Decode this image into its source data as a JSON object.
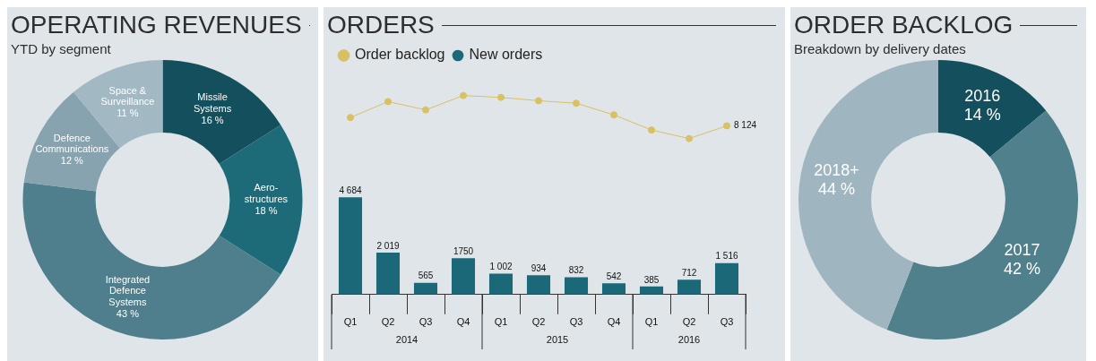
{
  "chart_data": [
    {
      "type": "donut",
      "title": "OPERATING REVENUES",
      "subtitle": "YTD by segment",
      "categories": [
        "Missile Systems",
        "Aero-structures",
        "Integrated Defence Systems",
        "Defence Communications",
        "Space & Surveillance"
      ],
      "values": [
        16,
        18,
        43,
        12,
        11
      ],
      "value_labels": [
        "16 %",
        "18 %",
        "43 %",
        "12 %",
        "11 %"
      ],
      "colors": [
        "#134f5c",
        "#1d6a78",
        "#4f7f8c",
        "#86a3af",
        "#a2b9c3"
      ]
    },
    {
      "type": "bar",
      "title": "ORDERS",
      "categories": [
        "Q1",
        "Q2",
        "Q3",
        "Q4",
        "Q1",
        "Q2",
        "Q3",
        "Q4",
        "Q1",
        "Q2",
        "Q3"
      ],
      "legend": "top left",
      "marker": "circle",
      "annotations": [
        "2014",
        "2015",
        "2016"
      ],
      "series": [
        {
          "name": "New orders",
          "color": "#1b6878",
          "values": [
            4684,
            2019,
            565,
            1750,
            1002,
            934,
            832,
            542,
            385,
            712,
            1516
          ],
          "value_labels": [
            "4 684",
            "2 019",
            "565",
            "1750",
            "1 002",
            "934",
            "832",
            "542",
            "385",
            "712",
            "1 516"
          ]
        },
        {
          "name": "Order backlog",
          "type": "line",
          "color": "#d9c063",
          "values": [
            8520,
            9290,
            8890,
            9580,
            9490,
            9330,
            9210,
            8650,
            7920,
            7510,
            8124
          ],
          "value_labels": [
            null,
            null,
            null,
            null,
            null,
            null,
            null,
            null,
            null,
            null,
            "8 124"
          ]
        }
      ]
    },
    {
      "type": "donut",
      "title": "ORDER BACKLOG",
      "subtitle": "Breakdown by delivery dates",
      "categories": [
        "2016",
        "2017",
        "2018+"
      ],
      "values": [
        14,
        42,
        44
      ],
      "value_labels": [
        "14 %",
        "42 %",
        "44 %"
      ],
      "colors": [
        "#134f5c",
        "#4f808c",
        "#9fb6c1"
      ]
    }
  ]
}
